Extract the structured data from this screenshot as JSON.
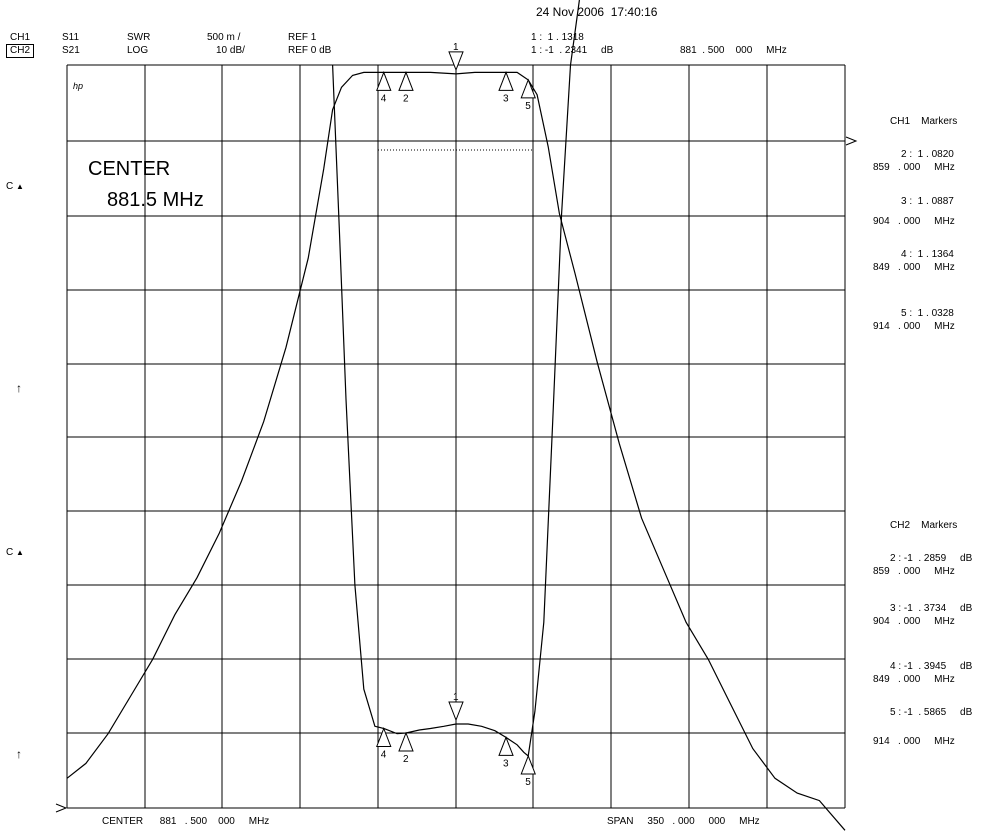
{
  "header": {
    "datetime": "24 Nov 2006  17:40:16",
    "ch1": {
      "name": "CH1",
      "param": "S11",
      "format": "SWR",
      "scale": "500 m /",
      "ref": "REF 1"
    },
    "ch2": {
      "name": "CH2",
      "param": "S21",
      "format": "LOG",
      "scale": "10 dB/",
      "ref": "REF 0 dB"
    },
    "marker1_ch1": "1 :  1 . 1318",
    "marker1_ch2": "1 : -1  . 2341     dB",
    "marker1_freq": "881  . 500    000     MHz"
  },
  "plot_text": {
    "corner": "hp",
    "center_label": "CENTER",
    "center_value": "881.5 MHz",
    "left_c1": "C",
    "left_c2": "C",
    "arrow1": "↑",
    "arrow2": "↑"
  },
  "footer": {
    "center": "CENTER      881   . 500    000     MHz",
    "span": "SPAN     350   . 000     000     MHz"
  },
  "ch1_markers": {
    "title": "CH1    Markers",
    "items": [
      {
        "line1": "2 :  1 . 0820",
        "line2": "859   . 000     MHz"
      },
      {
        "line1": "3 :  1 . 0887",
        "line2": "904   . 000     MHz"
      },
      {
        "line1": "4 :  1 . 1364",
        "line2": "849   . 000     MHz"
      },
      {
        "line1": "5 :  1 . 0328",
        "line2": "914   . 000     MHz"
      }
    ]
  },
  "ch2_markers": {
    "title": "CH2    Markers",
    "items": [
      {
        "line1": "2 : -1  . 2859     dB",
        "line2": "859   . 000     MHz"
      },
      {
        "line1": "3 : -1  . 3734     dB",
        "line2": "904   . 000     MHz"
      },
      {
        "line1": "4 : -1  . 3945     dB",
        "line2": "849   . 000     MHz"
      },
      {
        "line1": "5 : -1  . 5865     dB",
        "line2": "914   . 000     MHz"
      }
    ]
  },
  "chart_data": [
    {
      "type": "line",
      "name": "CH1 S11 SWR",
      "x_unit": "MHz",
      "xlim": [
        706.5,
        1056.5
      ],
      "ylim": [
        1,
        6
      ],
      "x": [
        706.5,
        715,
        725,
        735,
        745,
        755,
        765,
        775,
        785,
        795,
        805,
        815,
        822,
        826,
        830,
        835,
        840,
        845,
        849,
        855,
        859,
        870,
        881.5,
        890,
        900,
        904,
        909,
        914,
        918,
        923,
        928,
        935,
        945,
        955,
        965,
        975,
        985,
        995,
        1005,
        1015,
        1025,
        1035,
        1045,
        1056.5
      ],
      "values": [
        1.2,
        1.3,
        1.5,
        1.75,
        2.0,
        2.3,
        2.55,
        2.85,
        3.2,
        3.6,
        4.1,
        4.7,
        5.3,
        5.7,
        5.85,
        5.93,
        5.95,
        5.95,
        5.95,
        5.95,
        5.95,
        5.95,
        5.94,
        5.95,
        5.95,
        5.95,
        5.95,
        5.9,
        5.8,
        5.45,
        5.0,
        4.6,
        4.0,
        3.45,
        2.95,
        2.6,
        2.25,
        2.0,
        1.7,
        1.4,
        1.2,
        1.1,
        1.05,
        0.85
      ],
      "markers": [
        {
          "id": "1",
          "freq": 881.5,
          "value": 1.1318
        },
        {
          "id": "2",
          "freq": 859,
          "value": 1.082
        },
        {
          "id": "3",
          "freq": 904,
          "value": 1.0887
        },
        {
          "id": "4",
          "freq": 849,
          "value": 1.1364
        },
        {
          "id": "5",
          "freq": 914,
          "value": 1.0328
        }
      ]
    },
    {
      "type": "line",
      "name": "CH2 S21 LOG",
      "x_unit": "MHz",
      "xlim": [
        706.5,
        1056.5
      ],
      "ylim": [
        -100,
        0
      ],
      "x": [
        826,
        829,
        832,
        836,
        840,
        845,
        849,
        855,
        859,
        865,
        870,
        876,
        881.5,
        887,
        893,
        899,
        904,
        909,
        912,
        914,
        917,
        921,
        925,
        929,
        933,
        937
      ],
      "values": [
        0,
        -22,
        -45,
        -70,
        -84,
        -89,
        -89.3,
        -90.0,
        -89.9,
        -89.5,
        -89.3,
        -89.0,
        -88.7,
        -88.7,
        -89.0,
        -89.6,
        -90.5,
        -91.5,
        -92.5,
        -93.0,
        -87,
        -75,
        -48,
        -20,
        0,
        10
      ],
      "markers": [
        {
          "id": "1",
          "freq": 881.5,
          "value": -1.2341
        },
        {
          "id": "2",
          "freq": 859,
          "value": -1.2859
        },
        {
          "id": "3",
          "freq": 904,
          "value": -1.3734
        },
        {
          "id": "4",
          "freq": 849,
          "value": -1.3945
        },
        {
          "id": "5",
          "freq": 914,
          "value": -1.5865
        }
      ]
    }
  ]
}
